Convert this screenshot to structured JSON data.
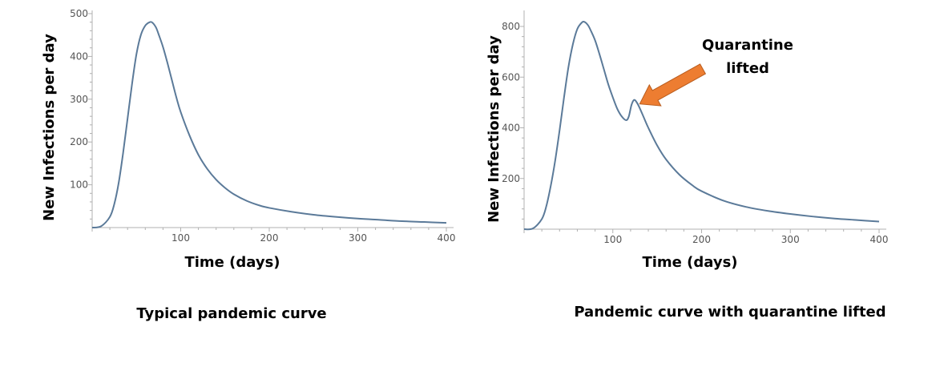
{
  "chart_data": [
    {
      "type": "line",
      "title": "Typical pandemic curve",
      "xlabel": "Time (days)",
      "ylabel": "New Infections per day",
      "xlim": [
        0,
        400
      ],
      "ylim": [
        0,
        500
      ],
      "xticks": [
        100,
        200,
        300,
        400
      ],
      "yticks": [
        100,
        200,
        300,
        400,
        500
      ],
      "grid": false,
      "line_color": "#5b7a99",
      "series": [
        {
          "x": [
            0,
            10,
            20,
            25,
            30,
            35,
            40,
            45,
            50,
            55,
            60,
            65,
            68,
            72,
            75,
            80,
            85,
            90,
            95,
            100,
            110,
            120,
            130,
            140,
            150,
            160,
            175,
            190,
            200,
            225,
            250,
            275,
            300,
            325,
            350,
            375,
            400
          ],
          "y": [
            0,
            3,
            25,
            55,
            105,
            175,
            255,
            335,
            405,
            450,
            472,
            480,
            479,
            468,
            452,
            422,
            385,
            345,
            305,
            270,
            215,
            170,
            137,
            112,
            93,
            78,
            62,
            51,
            46,
            37,
            30,
            25,
            21,
            18,
            15,
            13,
            11
          ]
        }
      ]
    },
    {
      "type": "line",
      "title": "Pandemic curve with quarantine lifted",
      "xlabel": "Time (days)",
      "ylabel": "New Infections per day",
      "xlim": [
        0,
        400
      ],
      "ylim": [
        0,
        800
      ],
      "xticks": [
        100,
        200,
        300,
        400
      ],
      "yticks": [
        200,
        400,
        600,
        800
      ],
      "grid": false,
      "line_color": "#5b7a99",
      "series": [
        {
          "x": [
            0,
            10,
            20,
            25,
            30,
            35,
            40,
            45,
            50,
            55,
            60,
            65,
            68,
            72,
            75,
            80,
            85,
            90,
            95,
            100,
            105,
            110,
            115,
            118,
            121,
            124,
            127,
            130,
            135,
            140,
            150,
            160,
            175,
            190,
            200,
            225,
            250,
            275,
            300,
            325,
            350,
            375,
            400
          ],
          "y": [
            0,
            3,
            40,
            90,
            170,
            270,
            390,
            520,
            640,
            730,
            790,
            815,
            818,
            805,
            785,
            745,
            690,
            630,
            570,
            520,
            475,
            445,
            430,
            445,
            490,
            510,
            500,
            480,
            440,
            400,
            330,
            275,
            215,
            172,
            150,
            112,
            88,
            72,
            60,
            50,
            42,
            36,
            30
          ]
        }
      ],
      "annotations": [
        {
          "text": [
            "Quarantine",
            "lifted"
          ],
          "points_to": {
            "x": 124,
            "y": 510
          },
          "arrow_color": "#ed7d31"
        }
      ]
    }
  ]
}
